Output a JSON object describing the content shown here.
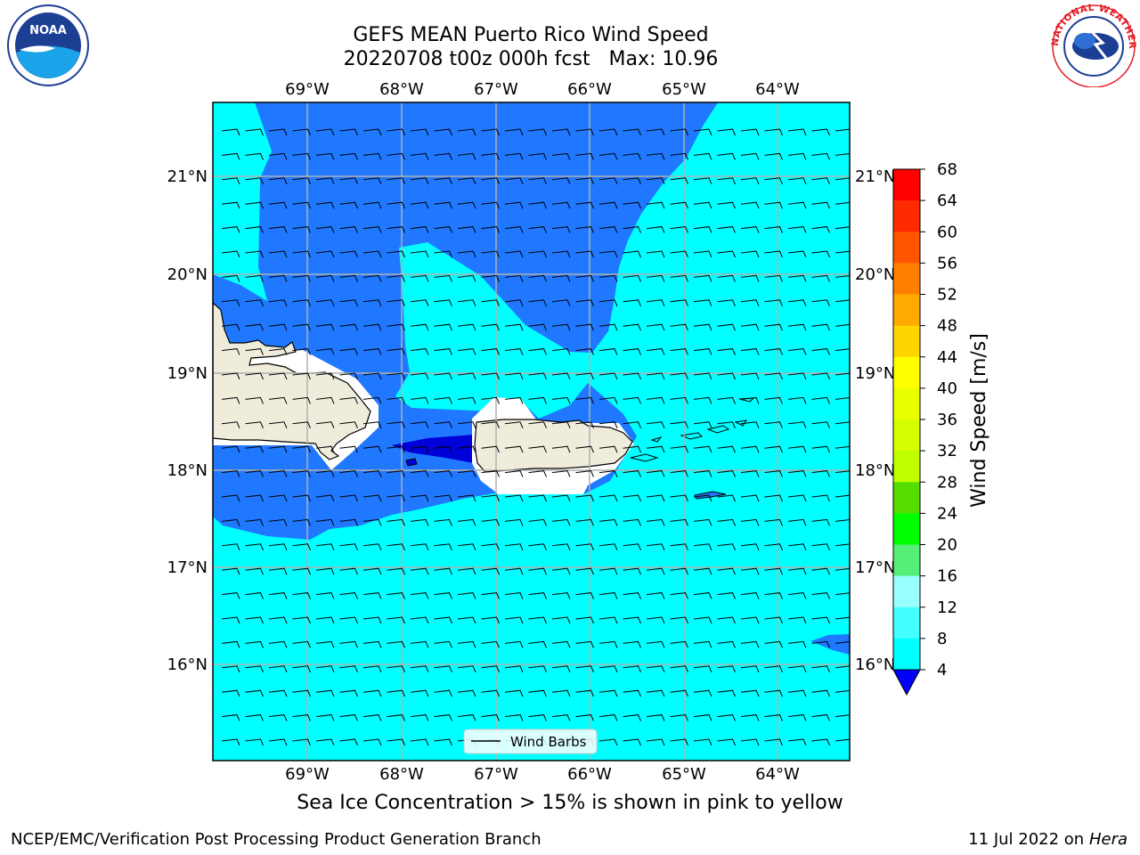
{
  "title": {
    "line1": "GEFS MEAN Puerto Rico Wind Speed",
    "line2": "20220708 t00z 000h fcst   Max: 10.96"
  },
  "map": {
    "lon_labels": [
      "69°W",
      "68°W",
      "67°W",
      "66°W",
      "65°W",
      "64°W"
    ],
    "lat_labels": [
      "21°N",
      "20°N",
      "19°N",
      "18°N",
      "17°N",
      "16°N"
    ],
    "legend_label": "Wind Barbs",
    "colors": {
      "ocean_dark": "#1f78ff",
      "ocean_light": "#00ffff",
      "ocean_deep": "#0000d8",
      "land": "#efecdc",
      "grid": "#b0b0b0"
    }
  },
  "colorbar": {
    "label": "Wind Speed [m/s]",
    "ticks": [
      "68",
      "64",
      "60",
      "56",
      "52",
      "48",
      "44",
      "40",
      "36",
      "32",
      "28",
      "24",
      "20",
      "16",
      "12",
      "8",
      "4"
    ],
    "colors": [
      "#ff0000",
      "#ff2a00",
      "#ff5500",
      "#ff8000",
      "#ffaa00",
      "#ffd500",
      "#ffff00",
      "#eaff00",
      "#d5ff00",
      "#c0ff00",
      "#55dd00",
      "#00ff00",
      "#55ee77",
      "#99ffff",
      "#44ffff",
      "#00ffff",
      "#1f78ff",
      "#0000ff"
    ]
  },
  "caption": "Sea Ice Concentration > 15% is shown in pink to yellow",
  "footer": {
    "left": "NCEP/EMC/Verification Post Processing Product Generation Branch",
    "right_prefix": "11 Jul 2022 on ",
    "right_host": "Hera"
  },
  "logos": {
    "noaa_text": "NOAA",
    "nws_text": "NATIONAL WEATHER SERVICE"
  }
}
